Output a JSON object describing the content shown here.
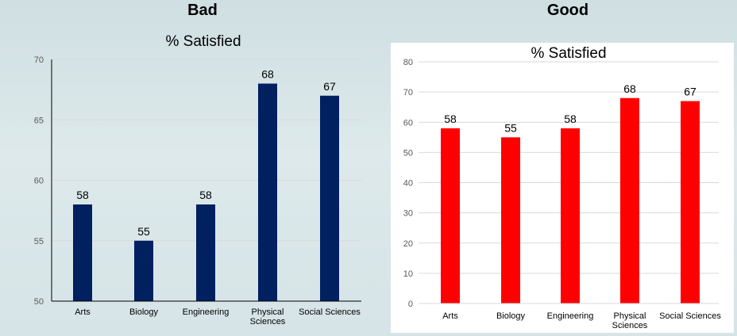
{
  "headings": {
    "bad": "Bad",
    "good": "Good"
  },
  "colors": {
    "bad_bar": "#002060",
    "good_bar": "#ff0000",
    "gridline": "#d9d9d9",
    "axis": "#000000"
  },
  "chart_data": [
    {
      "type": "bar",
      "title": "% Satisfied",
      "categories": [
        [
          "Arts"
        ],
        [
          "Biology"
        ],
        [
          "Engineering"
        ],
        [
          "Physical",
          "Sciences"
        ],
        [
          "Social Sciences"
        ]
      ],
      "values": [
        58,
        55,
        58,
        68,
        67
      ],
      "ylim": [
        50,
        70
      ],
      "yticks": [
        50,
        55,
        60,
        65,
        70
      ],
      "grid": true,
      "legend": "none",
      "xlabel": "",
      "ylabel": ""
    },
    {
      "type": "bar",
      "title": "% Satisfied",
      "categories": [
        [
          "Arts"
        ],
        [
          "Biology"
        ],
        [
          "Engineering"
        ],
        [
          "Physical",
          "Sciences"
        ],
        [
          "Social Sciences"
        ]
      ],
      "values": [
        58,
        55,
        58,
        68,
        67
      ],
      "ylim": [
        0,
        80
      ],
      "yticks": [
        0,
        10,
        20,
        30,
        40,
        50,
        60,
        70,
        80
      ],
      "grid": true,
      "legend": "none",
      "xlabel": "",
      "ylabel": ""
    }
  ]
}
